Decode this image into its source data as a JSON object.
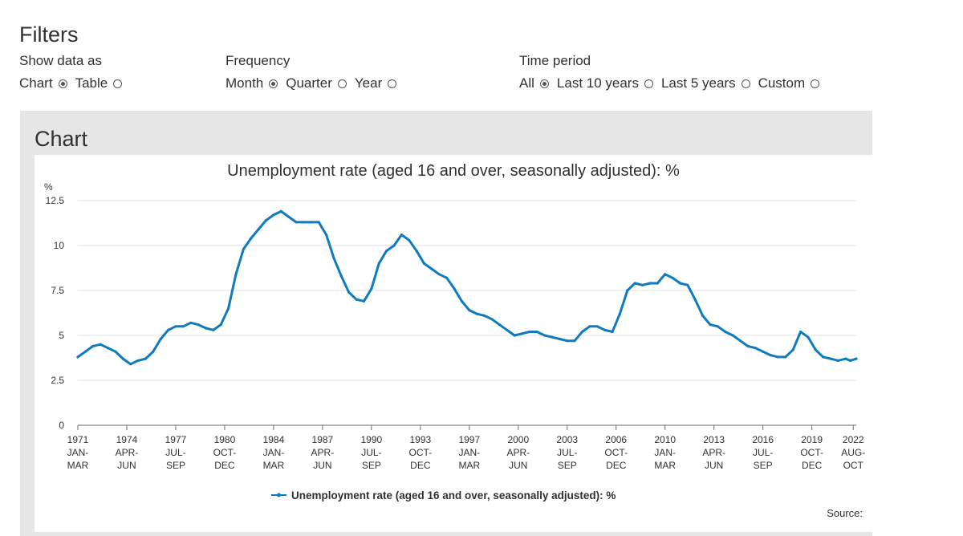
{
  "filters": {
    "title": "Filters",
    "show_data_as": {
      "label": "Show data as",
      "options": [
        {
          "label": "Chart",
          "checked": true
        },
        {
          "label": "Table",
          "checked": false
        }
      ]
    },
    "frequency": {
      "label": "Frequency",
      "options": [
        {
          "label": "Month",
          "checked": true
        },
        {
          "label": "Quarter",
          "checked": false
        },
        {
          "label": "Year",
          "checked": false
        }
      ]
    },
    "time_period": {
      "label": "Time period",
      "options": [
        {
          "label": "All",
          "checked": true
        },
        {
          "label": "Last 10 years",
          "checked": false
        },
        {
          "label": "Last 5 years",
          "checked": false
        },
        {
          "label": "Custom",
          "checked": false
        }
      ]
    }
  },
  "panel": {
    "title": "Chart",
    "source_label": "Source:"
  },
  "colors": {
    "line": "#0f7bbf",
    "grid": "#e2e2e2",
    "axis": "#6b6b6b",
    "text": "#323132",
    "panel": "#e6e6e6"
  },
  "chart_data": {
    "type": "line",
    "title": "Unemployment rate (aged 16 and over, seasonally adjusted): %",
    "ylabel": "%",
    "xlabel": "",
    "ylim": [
      0,
      12.5
    ],
    "xlim": [
      1971.0,
      2022.7
    ],
    "yticks": [
      {
        "value": 0,
        "label": "0"
      },
      {
        "value": 2.5,
        "label": "2.5"
      },
      {
        "value": 5,
        "label": "5"
      },
      {
        "value": 7.5,
        "label": "7.5"
      },
      {
        "value": 10,
        "label": "10"
      },
      {
        "value": 12.5,
        "label": "12.5"
      }
    ],
    "xticks": [
      {
        "x": 1971.0,
        "year": "1971",
        "period": "JAN-",
        "sub": "MAR"
      },
      {
        "x": 1974.25,
        "year": "1974",
        "period": "APR-",
        "sub": "JUN"
      },
      {
        "x": 1977.5,
        "year": "1977",
        "period": "JUL-",
        "sub": "SEP"
      },
      {
        "x": 1980.75,
        "year": "1980",
        "period": "OCT-",
        "sub": "DEC"
      },
      {
        "x": 1984.0,
        "year": "1984",
        "period": "JAN-",
        "sub": "MAR"
      },
      {
        "x": 1987.25,
        "year": "1987",
        "period": "APR-",
        "sub": "JUN"
      },
      {
        "x": 1990.5,
        "year": "1990",
        "period": "JUL-",
        "sub": "SEP"
      },
      {
        "x": 1993.75,
        "year": "1993",
        "period": "OCT-",
        "sub": "DEC"
      },
      {
        "x": 1997.0,
        "year": "1997",
        "period": "JAN-",
        "sub": "MAR"
      },
      {
        "x": 2000.25,
        "year": "2000",
        "period": "APR-",
        "sub": "JUN"
      },
      {
        "x": 2003.5,
        "year": "2003",
        "period": "JUL-",
        "sub": "SEP"
      },
      {
        "x": 2006.75,
        "year": "2006",
        "period": "OCT-",
        "sub": "DEC"
      },
      {
        "x": 2010.0,
        "year": "2010",
        "period": "JAN-",
        "sub": "MAR"
      },
      {
        "x": 2013.25,
        "year": "2013",
        "period": "APR-",
        "sub": "JUN"
      },
      {
        "x": 2016.5,
        "year": "2016",
        "period": "JUL-",
        "sub": "SEP"
      },
      {
        "x": 2019.75,
        "year": "2019",
        "period": "OCT-",
        "sub": "DEC"
      },
      {
        "x": 2022.5,
        "year": "2022",
        "period": "AUG-",
        "sub": "OCT"
      }
    ],
    "series": [
      {
        "name": "Unemployment rate (aged 16 and over, seasonally adjusted): %",
        "x": [
          1971.0,
          1971.5,
          1972.0,
          1972.5,
          1973.0,
          1973.5,
          1974.0,
          1974.5,
          1975.0,
          1975.5,
          1976.0,
          1976.5,
          1977.0,
          1977.5,
          1978.0,
          1978.5,
          1979.0,
          1979.5,
          1980.0,
          1980.5,
          1981.0,
          1981.5,
          1982.0,
          1982.5,
          1983.0,
          1983.5,
          1984.0,
          1984.5,
          1985.0,
          1985.5,
          1986.0,
          1986.5,
          1987.0,
          1987.5,
          1988.0,
          1988.5,
          1989.0,
          1989.5,
          1990.0,
          1990.5,
          1991.0,
          1991.5,
          1992.0,
          1992.5,
          1993.0,
          1993.5,
          1994.0,
          1994.5,
          1995.0,
          1995.5,
          1996.0,
          1996.5,
          1997.0,
          1997.5,
          1998.0,
          1998.5,
          1999.0,
          1999.5,
          2000.0,
          2000.5,
          2001.0,
          2001.5,
          2002.0,
          2002.5,
          2003.0,
          2003.5,
          2004.0,
          2004.5,
          2005.0,
          2005.5,
          2006.0,
          2006.5,
          2007.0,
          2007.5,
          2008.0,
          2008.5,
          2009.0,
          2009.5,
          2010.0,
          2010.5,
          2011.0,
          2011.5,
          2012.0,
          2012.5,
          2013.0,
          2013.5,
          2014.0,
          2014.5,
          2015.0,
          2015.5,
          2016.0,
          2016.5,
          2017.0,
          2017.5,
          2018.0,
          2018.5,
          2019.0,
          2019.5,
          2020.0,
          2020.5,
          2021.0,
          2021.5,
          2022.0,
          2022.3,
          2022.7
        ],
        "values": [
          3.8,
          4.1,
          4.4,
          4.5,
          4.3,
          4.1,
          3.7,
          3.4,
          3.6,
          3.7,
          4.1,
          4.8,
          5.3,
          5.5,
          5.5,
          5.7,
          5.6,
          5.4,
          5.3,
          5.6,
          6.5,
          8.4,
          9.8,
          10.4,
          10.9,
          11.4,
          11.7,
          11.9,
          11.6,
          11.3,
          11.3,
          11.3,
          11.3,
          10.6,
          9.3,
          8.3,
          7.4,
          7.0,
          6.9,
          7.6,
          9.0,
          9.7,
          10.0,
          10.6,
          10.3,
          9.7,
          9.0,
          8.7,
          8.4,
          8.2,
          7.6,
          6.9,
          6.4,
          6.2,
          6.1,
          5.9,
          5.6,
          5.3,
          5.0,
          5.1,
          5.2,
          5.2,
          5.0,
          4.9,
          4.8,
          4.7,
          4.7,
          5.2,
          5.5,
          5.5,
          5.3,
          5.2,
          6.2,
          7.5,
          7.9,
          7.8,
          7.9,
          7.9,
          8.4,
          8.2,
          7.9,
          7.8,
          7.0,
          6.1,
          5.6,
          5.5,
          5.2,
          5.0,
          4.7,
          4.4,
          4.3,
          4.1,
          3.9,
          3.8,
          3.8,
          4.2,
          5.2,
          4.9,
          4.2,
          3.8,
          3.7,
          3.6,
          3.7,
          3.6,
          3.7
        ]
      }
    ],
    "legend": {
      "position": "bottom-center",
      "label": "Unemployment rate (aged 16 and over, seasonally adjusted): %"
    }
  }
}
